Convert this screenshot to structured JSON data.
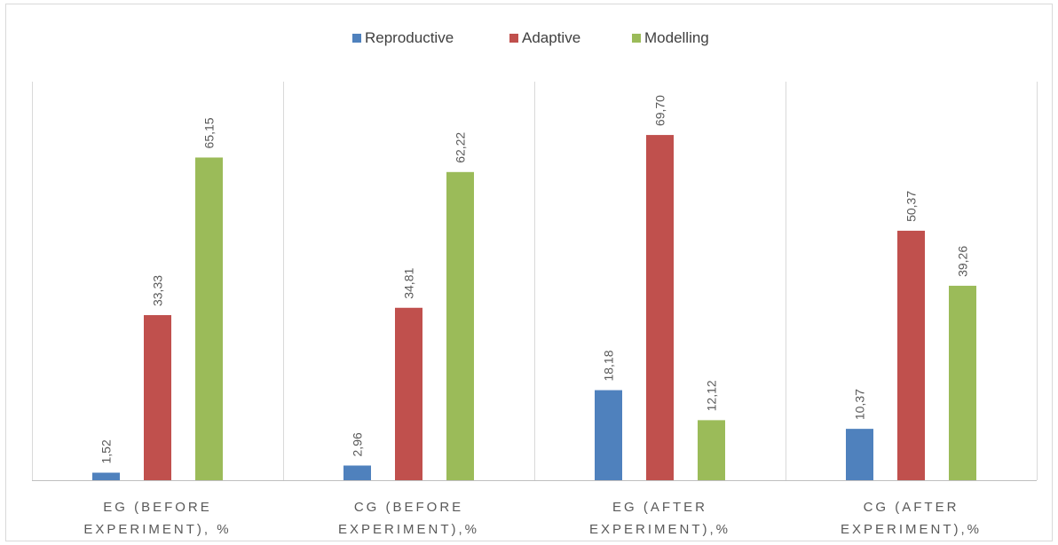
{
  "chart_data": {
    "type": "bar",
    "title": "",
    "xlabel": "",
    "ylabel": "",
    "legend_position": "top",
    "grid": false,
    "categories": [
      [
        "EG (BEFORE",
        "EXPERIMENT), %"
      ],
      [
        "CG (BEFORE",
        "EXPERIMENT),%"
      ],
      [
        "EG (AFTER",
        "EXPERIMENT),%"
      ],
      [
        "CG (AFTER",
        "EXPERIMENT),%"
      ]
    ],
    "series": [
      {
        "name": "Reproductive",
        "color": "#4f81bd",
        "values": [
          1.52,
          2.96,
          18.18,
          10.37
        ],
        "labels": [
          "1,52",
          "2,96",
          "18,18",
          "10,37"
        ]
      },
      {
        "name": "Adaptive",
        "color": "#c0504d",
        "values": [
          33.33,
          34.81,
          69.7,
          50.37
        ],
        "labels": [
          "33,33",
          "34,81",
          "69,70",
          "50,37"
        ]
      },
      {
        "name": "Modelling",
        "color": "#9bbb59",
        "values": [
          65.15,
          62.22,
          12.12,
          39.26
        ],
        "labels": [
          "65,15",
          "62,22",
          "12,12",
          "39,26"
        ]
      }
    ],
    "ylim": [
      0,
      100
    ]
  }
}
